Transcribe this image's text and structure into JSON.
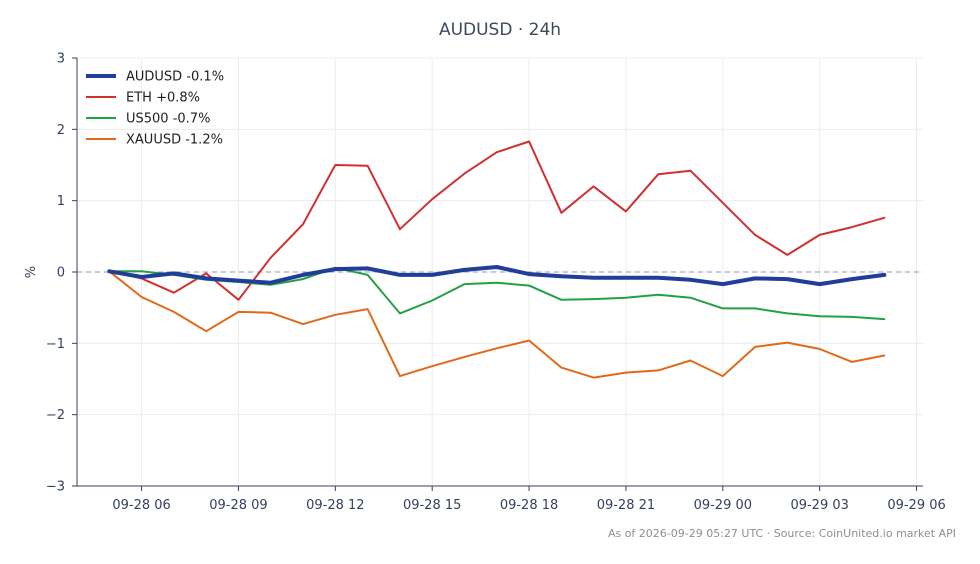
{
  "chart_data": {
    "type": "line",
    "title": "AUDUSD · 24h",
    "ylabel": "%",
    "ylim": [
      -3,
      3
    ],
    "yticks": [
      3,
      2,
      1,
      0,
      -1,
      -2,
      -3
    ],
    "ytick_labels": [
      "3",
      "2",
      "1",
      "0",
      "−1",
      "−2",
      "−3"
    ],
    "xlim_hours": [
      4.0,
      30.2
    ],
    "xtick_hours": [
      6,
      9,
      12,
      15,
      18,
      21,
      24,
      27,
      30
    ],
    "xtick_labels": [
      "09-28 06",
      "09-28 09",
      "09-28 12",
      "09-28 15",
      "09-28 18",
      "09-28 21",
      "09-29 00",
      "09-29 03",
      "09-29 06"
    ],
    "x_hours": [
      5,
      6,
      7,
      8,
      9,
      10,
      11,
      12,
      13,
      14,
      15,
      16,
      17,
      18,
      19,
      20,
      21,
      22,
      23,
      24,
      25,
      26,
      27,
      28,
      29
    ],
    "grid": true,
    "zero_line": "dashed",
    "legend_position": "top-left",
    "series": [
      {
        "name": "AUDUSD -0.1%",
        "color": "#1f3d99",
        "width": 4,
        "values": [
          0.01,
          -0.07,
          -0.02,
          -0.09,
          -0.12,
          -0.15,
          -0.04,
          0.04,
          0.05,
          -0.04,
          -0.04,
          0.03,
          0.07,
          -0.03,
          -0.06,
          -0.08,
          -0.08,
          -0.08,
          -0.11,
          -0.17,
          -0.09,
          -0.1,
          -0.17,
          -0.1,
          -0.04
        ]
      },
      {
        "name": "ETH +0.8%",
        "color": "#d03030",
        "width": 2,
        "values": [
          0.02,
          -0.09,
          -0.29,
          -0.02,
          -0.39,
          0.2,
          0.67,
          1.5,
          1.49,
          0.6,
          1.02,
          1.38,
          1.68,
          1.83,
          0.83,
          1.2,
          0.85,
          1.37,
          1.42,
          0.97,
          0.52,
          0.24,
          0.52,
          0.63,
          0.76
        ]
      },
      {
        "name": "US500 -0.7%",
        "color": "#22a045",
        "width": 2,
        "values": [
          0.01,
          0.01,
          -0.04,
          -0.11,
          -0.14,
          -0.18,
          -0.1,
          0.06,
          -0.04,
          -0.58,
          -0.4,
          -0.17,
          -0.15,
          -0.19,
          -0.39,
          -0.38,
          -0.36,
          -0.32,
          -0.36,
          -0.51,
          -0.51,
          -0.58,
          -0.62,
          -0.63,
          -0.66
        ]
      },
      {
        "name": "XAUUSD -1.2%",
        "color": "#e06a1a",
        "width": 2,
        "values": [
          0.01,
          -0.35,
          -0.56,
          -0.83,
          -0.56,
          -0.57,
          -0.73,
          -0.6,
          -0.52,
          -1.46,
          -1.32,
          -1.19,
          -1.07,
          -0.96,
          -1.34,
          -1.48,
          -1.41,
          -1.38,
          -1.24,
          -1.46,
          -1.05,
          -0.99,
          -1.08,
          -1.26,
          -1.17
        ]
      }
    ]
  },
  "footer": "As of 2026-09-29 05:27 UTC · Source: CoinUnited.io market API"
}
